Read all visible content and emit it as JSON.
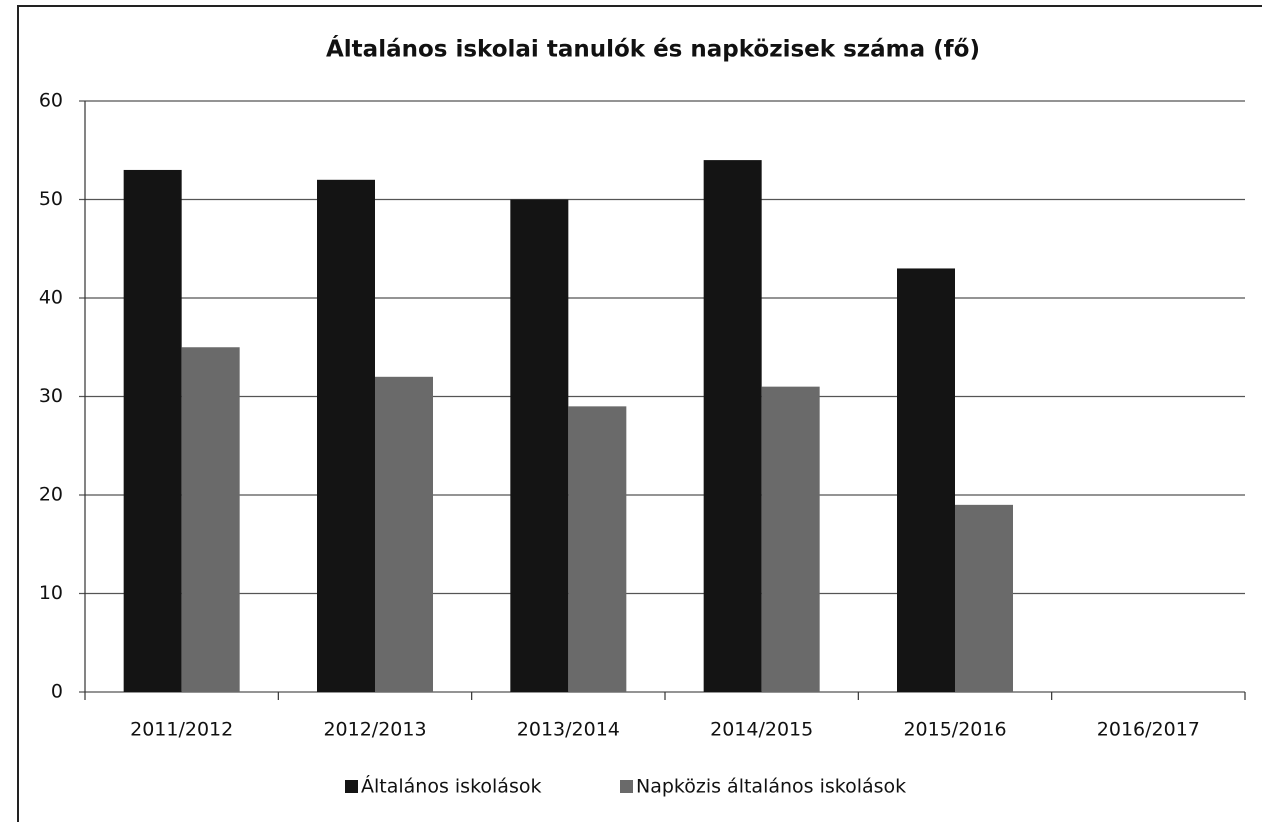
{
  "chart_data": {
    "type": "bar",
    "title": "Általános iskolai tanulók és napközisek száma (fő)",
    "categories": [
      "2011/2012",
      "2012/2013",
      "2013/2014",
      "2014/2015",
      "2015/2016",
      "2016/2017"
    ],
    "series": [
      {
        "name": "Általános iskolások",
        "color": "#141414",
        "values": [
          53,
          52,
          50,
          54,
          43,
          null
        ]
      },
      {
        "name": "Napközis általános iskolások",
        "color": "#6a6a6a",
        "values": [
          35,
          32,
          29,
          31,
          19,
          null
        ]
      }
    ],
    "ylim": [
      0,
      60
    ],
    "yticks": [
      0,
      10,
      20,
      30,
      40,
      50,
      60
    ],
    "grid": true,
    "legend": "bottom"
  }
}
